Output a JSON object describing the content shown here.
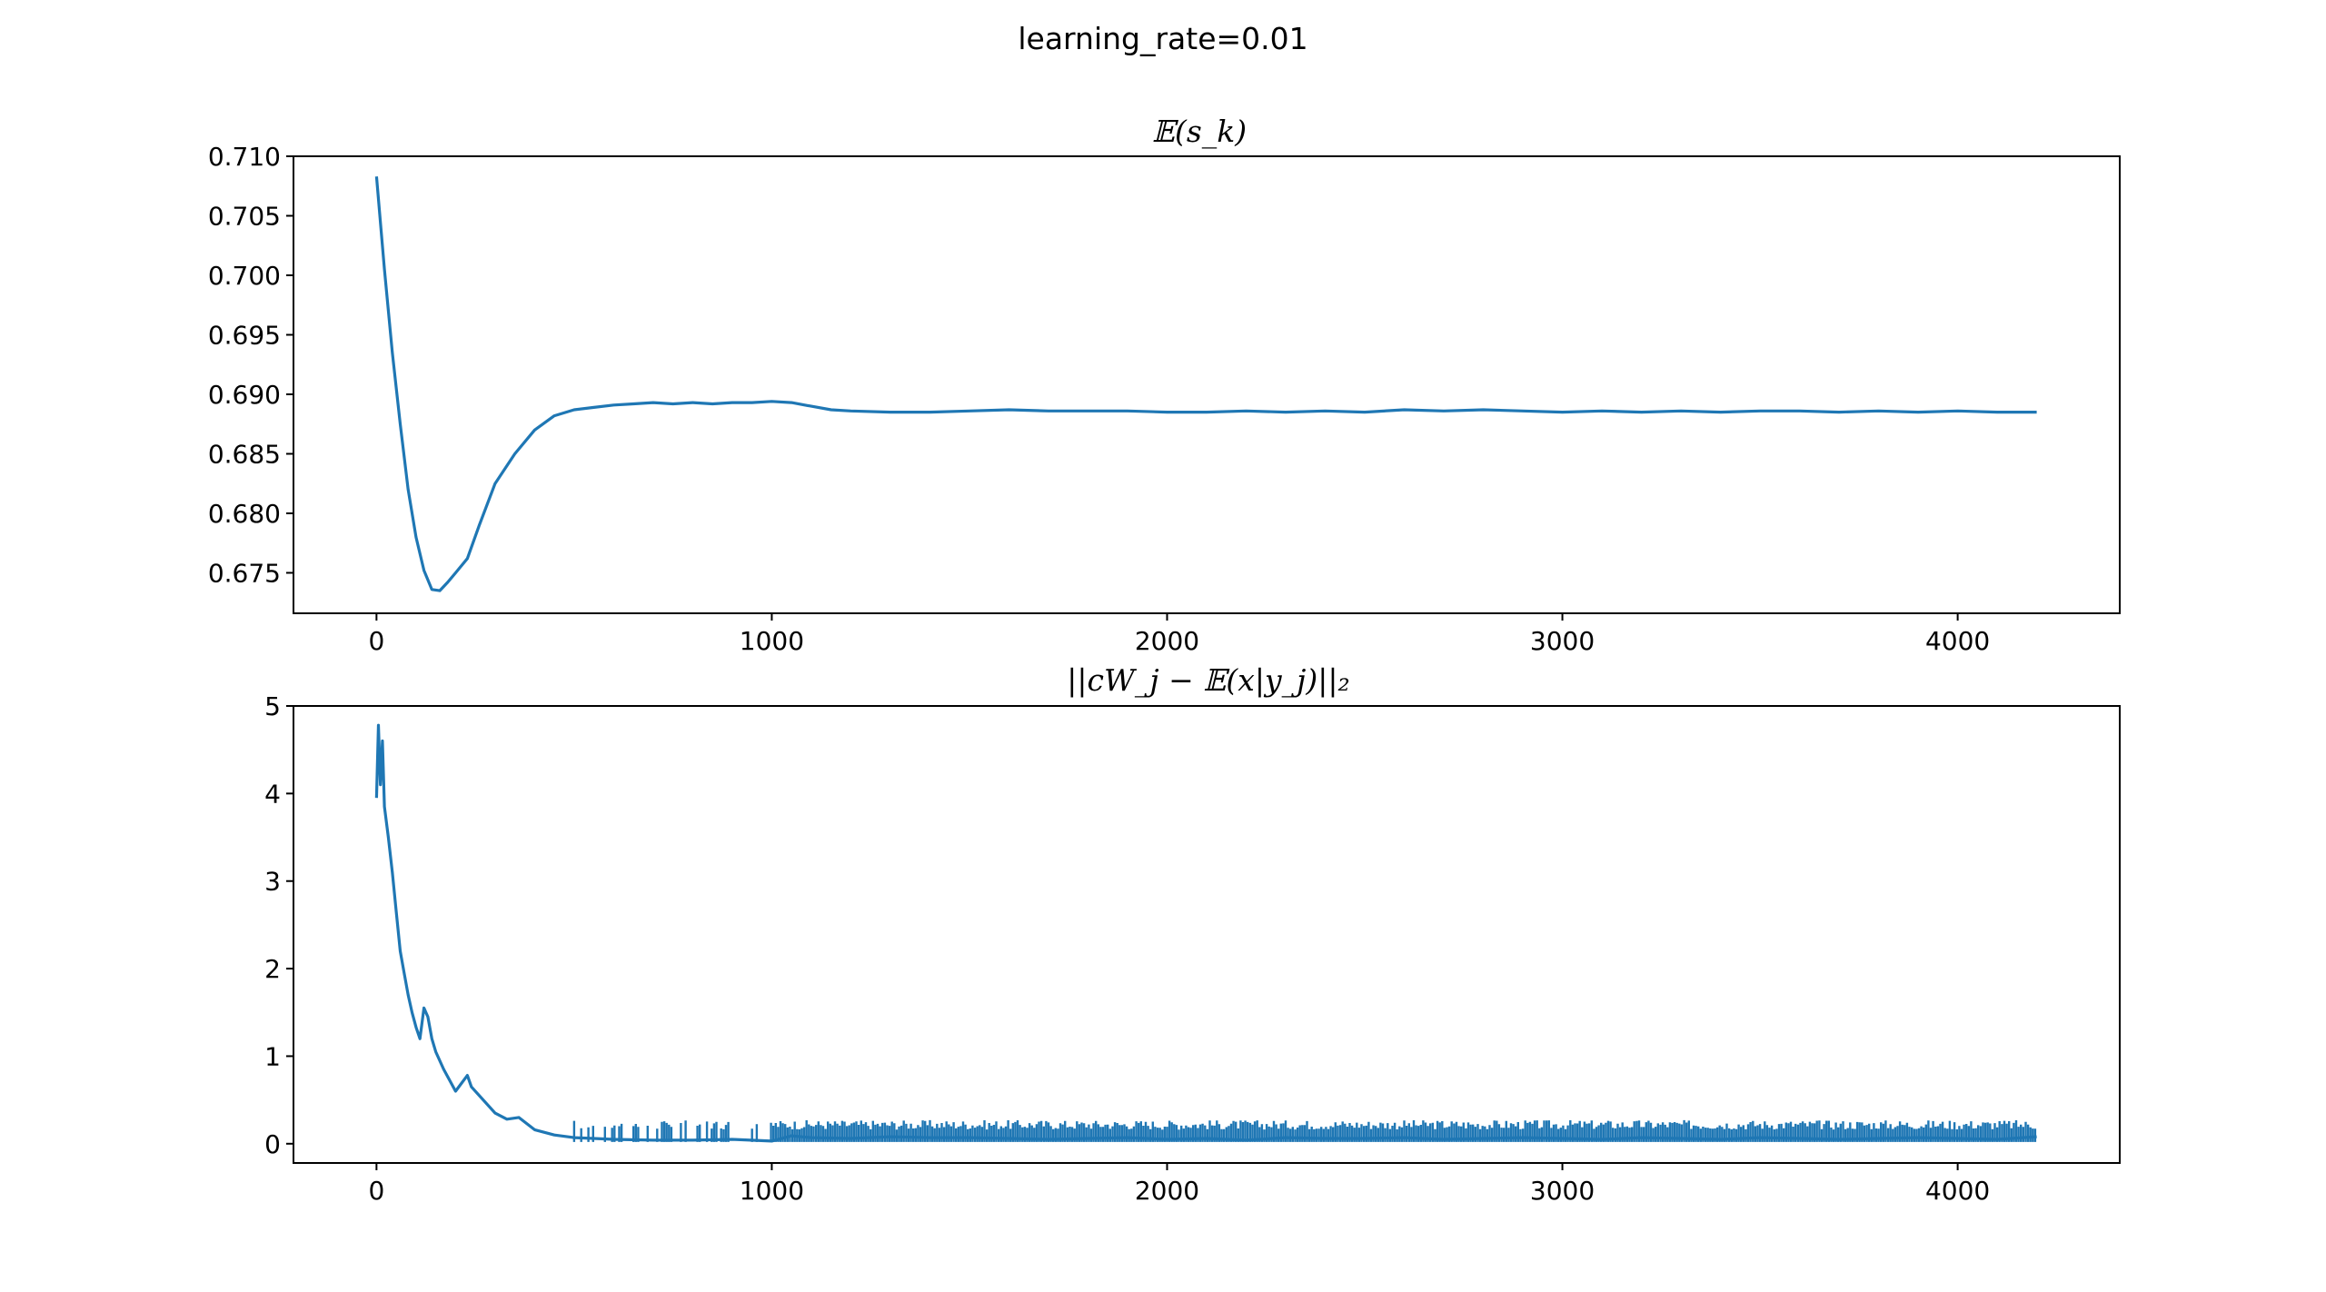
{
  "figure_title": "learning_rate=0.01",
  "colors": {
    "series": "#1f77b4",
    "axes": "#000000"
  },
  "chart_data": [
    {
      "type": "line",
      "title": "𝔼(s_k)",
      "xlabel": "",
      "ylabel": "",
      "xlim": [
        -210,
        4410
      ],
      "ylim": [
        0.6716,
        0.71
      ],
      "xticks": [
        0,
        1000,
        2000,
        3000,
        4000
      ],
      "xtick_labels": [
        "0",
        "1000",
        "2000",
        "3000",
        "4000"
      ],
      "yticks": [
        0.675,
        0.68,
        0.685,
        0.69,
        0.695,
        0.7,
        0.705,
        0.71
      ],
      "ytick_labels": [
        "0.675",
        "0.680",
        "0.685",
        "0.690",
        "0.695",
        "0.700",
        "0.705",
        "0.710"
      ],
      "grid": false,
      "legend": "none",
      "series": [
        {
          "x": [
            0,
            20,
            40,
            60,
            80,
            100,
            120,
            140,
            160,
            180,
            200,
            230,
            260,
            300,
            350,
            400,
            450,
            500,
            550,
            600,
            650,
            700,
            750,
            800,
            850,
            900,
            950,
            1000,
            1050,
            1100,
            1150,
            1200,
            1300,
            1400,
            1500,
            1600,
            1700,
            1800,
            1900,
            2000,
            2100,
            2200,
            2300,
            2400,
            2500,
            2600,
            2700,
            2800,
            2900,
            3000,
            3100,
            3200,
            3300,
            3400,
            3500,
            3600,
            3700,
            3800,
            3900,
            4000,
            4100,
            4200
          ],
          "y": [
            0.7083,
            0.7005,
            0.6935,
            0.6875,
            0.682,
            0.678,
            0.6752,
            0.6736,
            0.6735,
            0.6742,
            0.675,
            0.6762,
            0.679,
            0.6825,
            0.685,
            0.687,
            0.6882,
            0.6887,
            0.6889,
            0.6891,
            0.6892,
            0.6893,
            0.6892,
            0.6893,
            0.6892,
            0.6893,
            0.6893,
            0.6894,
            0.6893,
            0.689,
            0.6887,
            0.6886,
            0.6885,
            0.6885,
            0.6886,
            0.6887,
            0.6886,
            0.6886,
            0.6886,
            0.6885,
            0.6885,
            0.6886,
            0.6885,
            0.6886,
            0.6885,
            0.6887,
            0.6886,
            0.6887,
            0.6886,
            0.6885,
            0.6886,
            0.6885,
            0.6886,
            0.6885,
            0.6886,
            0.6886,
            0.6885,
            0.6886,
            0.6885,
            0.6886,
            0.6885,
            0.6885
          ]
        }
      ]
    },
    {
      "type": "line",
      "title": "||cW_j − 𝔼(x|y_j)||₂",
      "xlabel": "",
      "ylabel": "",
      "xlim": [
        -210,
        4410
      ],
      "ylim": [
        -0.22,
        5.0
      ],
      "xticks": [
        0,
        1000,
        2000,
        3000,
        4000
      ],
      "xtick_labels": [
        "0",
        "1000",
        "2000",
        "3000",
        "4000"
      ],
      "yticks": [
        0,
        1,
        2,
        3,
        4,
        5
      ],
      "ytick_labels": [
        "0",
        "1",
        "2",
        "3",
        "4",
        "5"
      ],
      "grid": false,
      "legend": "none",
      "series": [
        {
          "x": [
            0,
            5,
            10,
            15,
            20,
            30,
            40,
            50,
            60,
            70,
            80,
            90,
            100,
            110,
            120,
            130,
            140,
            150,
            170,
            200,
            230,
            240,
            260,
            280,
            300,
            330,
            360,
            400,
            450,
            500,
            550,
            600,
            700,
            800,
            900,
            1000,
            1050,
            1100,
            1200,
            1300,
            1400,
            1500,
            1600,
            1700,
            1800,
            1900,
            2000,
            2100,
            2200,
            2300,
            2400,
            2500,
            2600,
            2700,
            2800,
            2900,
            3000,
            3100,
            3200,
            3300,
            3400,
            3500,
            3600,
            3700,
            3800,
            3900,
            4000,
            4100,
            4200
          ],
          "y": [
            3.95,
            4.78,
            4.1,
            4.6,
            3.85,
            3.5,
            3.1,
            2.65,
            2.2,
            1.95,
            1.7,
            1.5,
            1.33,
            1.2,
            1.55,
            1.45,
            1.2,
            1.05,
            0.85,
            0.6,
            0.78,
            0.65,
            0.55,
            0.45,
            0.35,
            0.28,
            0.3,
            0.16,
            0.1,
            0.07,
            0.06,
            0.05,
            0.04,
            0.04,
            0.05,
            0.03,
            0.09,
            0.07,
            0.06,
            0.08,
            0.07,
            0.07,
            0.06,
            0.05,
            0.06,
            0.07,
            0.05,
            0.06,
            0.04,
            0.07,
            0.06,
            0.06,
            0.07,
            0.05,
            0.06,
            0.07,
            0.06,
            0.05,
            0.07,
            0.06,
            0.05,
            0.07,
            0.06,
            0.05,
            0.06,
            0.07,
            0.06,
            0.05,
            0.08
          ]
        }
      ],
      "noise_band": {
        "x_start": 500,
        "x_end": 4200,
        "y_low": 0.02,
        "y_high": 0.27
      }
    }
  ]
}
